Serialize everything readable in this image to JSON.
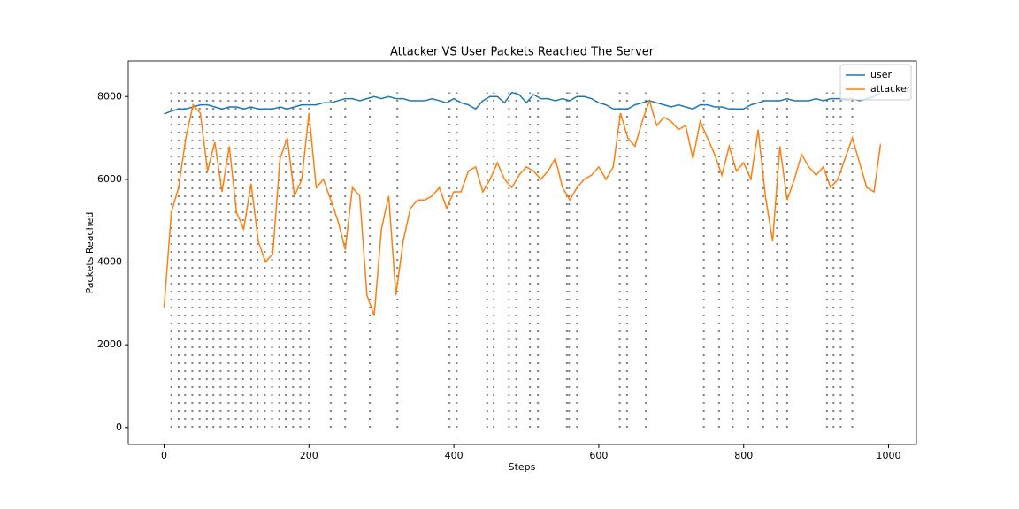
{
  "chart_data": {
    "type": "line",
    "title": "Attacker VS User Packets Reached The Server",
    "x_label": "Steps",
    "y_label": "Packets Reached",
    "x": [
      0,
      10,
      20,
      30,
      40,
      50,
      60,
      70,
      80,
      90,
      100,
      110,
      120,
      130,
      140,
      150,
      160,
      170,
      180,
      190,
      200,
      210,
      220,
      230,
      240,
      250,
      260,
      270,
      280,
      290,
      300,
      310,
      320,
      330,
      340,
      350,
      360,
      370,
      380,
      390,
      400,
      410,
      420,
      430,
      440,
      450,
      460,
      470,
      480,
      490,
      500,
      510,
      520,
      530,
      540,
      550,
      560,
      570,
      580,
      590,
      600,
      610,
      620,
      630,
      640,
      650,
      660,
      670,
      680,
      690,
      700,
      710,
      720,
      730,
      740,
      750,
      760,
      770,
      780,
      790,
      800,
      810,
      820,
      830,
      840,
      850,
      860,
      870,
      880,
      890,
      900,
      910,
      920,
      930,
      940,
      950,
      960,
      970,
      980,
      989
    ],
    "series": [
      {
        "name": "user",
        "color": "#1f77b4",
        "values": [
          7580,
          7650,
          7700,
          7700,
          7750,
          7800,
          7800,
          7750,
          7700,
          7750,
          7750,
          7700,
          7750,
          7700,
          7700,
          7700,
          7750,
          7700,
          7750,
          7800,
          7800,
          7800,
          7850,
          7850,
          7900,
          7950,
          7950,
          7900,
          7950,
          8000,
          7950,
          8000,
          7950,
          7950,
          7900,
          7900,
          7900,
          7950,
          7900,
          7850,
          7950,
          7850,
          7800,
          7700,
          7900,
          8000,
          8000,
          7850,
          8100,
          8050,
          7850,
          8050,
          7950,
          7950,
          7900,
          7950,
          7900,
          8000,
          8000,
          7950,
          7850,
          7800,
          7700,
          7700,
          7700,
          7800,
          7850,
          7900,
          7850,
          7800,
          7750,
          7800,
          7750,
          7700,
          7800,
          7800,
          7750,
          7750,
          7700,
          7700,
          7700,
          7800,
          7850,
          7900,
          7900,
          7900,
          7950,
          7900,
          7900,
          7900,
          7950,
          7900,
          7950,
          7950,
          7950,
          7950,
          7900,
          7950,
          8000,
          8100
        ]
      },
      {
        "name": "attacker",
        "color": "#ff7f0e",
        "values": [
          2900,
          5200,
          5800,
          7000,
          7800,
          7600,
          6200,
          6900,
          5700,
          6800,
          5200,
          4800,
          5900,
          4500,
          4000,
          4200,
          6500,
          7000,
          5600,
          6000,
          7600,
          5800,
          6000,
          5500,
          5000,
          4300,
          5800,
          5600,
          3200,
          2700,
          4800,
          5600,
          3200,
          4500,
          5300,
          5500,
          5500,
          5600,
          5800,
          5300,
          5700,
          5700,
          6200,
          6300,
          5700,
          6000,
          6400,
          6000,
          5800,
          6100,
          6300,
          6200,
          6000,
          6200,
          6500,
          5800,
          5500,
          5800,
          6000,
          6100,
          6300,
          6000,
          6300,
          7600,
          7000,
          6800,
          7400,
          7900,
          7300,
          7500,
          7400,
          7200,
          7300,
          6500,
          7400,
          7000,
          6600,
          6100,
          6800,
          6200,
          6400,
          6000,
          7200,
          5600,
          4500,
          6800,
          5500,
          6000,
          6600,
          6300,
          6100,
          6300,
          5800,
          6000,
          6500,
          7000,
          6400,
          5800,
          5700,
          6850
        ]
      }
    ],
    "vlines": [
      10,
      20,
      29,
      39,
      49,
      59,
      68,
      78,
      89,
      99,
      109,
      120,
      129,
      139,
      149,
      159,
      168,
      178,
      188,
      200,
      230,
      250,
      284,
      322,
      394,
      404,
      446,
      455,
      476,
      486,
      505,
      516,
      556,
      559,
      570,
      629,
      639,
      665,
      745,
      766,
      785,
      806,
      827,
      846,
      860,
      915,
      924,
      934,
      950
    ],
    "vline_range": [
      0,
      8100
    ],
    "vline_color": "#555555",
    "xlim": [
      -49.45,
      1038.45
    ],
    "ylim": [
      -410,
      8860
    ],
    "xticks": [
      0,
      200,
      400,
      600,
      800,
      1000
    ],
    "yticks": [
      0,
      2000,
      4000,
      6000,
      8000
    ],
    "legend": "upper right"
  }
}
